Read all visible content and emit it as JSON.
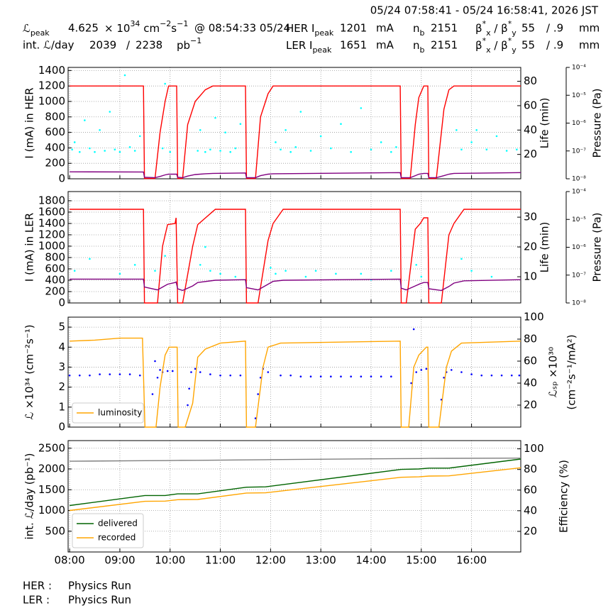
{
  "header": {
    "title": "05/24 07:58:41 - 05/24 16:58:41, 2026 JST",
    "rows": [
      [
        [
          {
            "text": "ℒ"
          },
          {
            "text": "peak",
            "pos": "sub"
          }
        ],
        "4.625",
        [
          {
            "text": "× 10"
          },
          {
            "text": "34",
            "pos": "sup"
          },
          {
            "text": " cm"
          },
          {
            "text": "−2",
            "pos": "sup"
          },
          {
            "text": "s"
          },
          {
            "text": "−1",
            "pos": "sup"
          }
        ],
        "@ 08:54:33 05/24",
        [
          {
            "text": "HER I"
          },
          {
            "text": "peak",
            "pos": "sub"
          }
        ],
        "1201",
        "mA",
        [
          {
            "text": "n"
          },
          {
            "text": "b",
            "pos": "sub"
          }
        ],
        "2151",
        [
          {
            "text": "β"
          },
          {
            "text": "*",
            "pos": "sup"
          },
          {
            "text": "x",
            "pos": "sub"
          },
          {
            "text": " / β"
          },
          {
            "text": "*",
            "pos": "sup"
          },
          {
            "text": "y",
            "pos": "sub"
          }
        ],
        "55",
        "/ .9",
        "mm"
      ],
      [
        "int. ℒ/day",
        "2039",
        "/",
        "2238",
        [
          {
            "text": "pb"
          },
          {
            "text": "−1",
            "pos": "sup"
          }
        ],
        [
          {
            "text": "LER I"
          },
          {
            "text": "peak",
            "pos": "sub"
          }
        ],
        "1651",
        "mA",
        [
          {
            "text": "n"
          },
          {
            "text": "b",
            "pos": "sub"
          }
        ],
        "2151",
        [
          {
            "text": "β"
          },
          {
            "text": "*",
            "pos": "sup"
          },
          {
            "text": "x",
            "pos": "sub"
          },
          {
            "text": " / β"
          },
          {
            "text": "*",
            "pos": "sup"
          },
          {
            "text": "y",
            "pos": "sub"
          }
        ],
        "55",
        "/ .9",
        "mm"
      ]
    ]
  },
  "footer": [
    [
      "HER :",
      "Physics Run"
    ],
    [
      "LER :",
      "Physics Run"
    ]
  ],
  "chart_data": [
    {
      "type": "line",
      "ylabel": "I (mA) in HER",
      "y2label": "Life (min)",
      "y3label": "Pressure (Pa)",
      "grid": true,
      "xlim": [
        7.97,
        16.98
      ],
      "xticks": [
        8,
        9,
        10,
        11,
        12,
        13,
        14,
        15,
        16
      ],
      "ylim": [
        0,
        1440
      ],
      "yticks": [
        0,
        200,
        400,
        600,
        800,
        1000,
        1200,
        1400
      ],
      "y2lim": [
        0,
        91.4
      ],
      "y2ticks": [
        20,
        40,
        60,
        80
      ],
      "y3lim": [
        1e-08,
        0.0001
      ],
      "y3scale": "log",
      "y3ticks": [
        {
          "value": 1e-08,
          "label": "10⁻⁸"
        },
        {
          "value": 1e-07,
          "label": "10⁻⁷"
        },
        {
          "value": 1e-06,
          "label": "10⁻⁶"
        },
        {
          "value": 1e-05,
          "label": "10⁻⁵"
        },
        {
          "value": 0.0001,
          "label": "10⁻⁴"
        }
      ],
      "x": [
        8.0,
        9.47,
        9.49,
        9.7,
        9.8,
        9.9,
        9.97,
        10.13,
        10.15,
        10.25,
        10.35,
        10.5,
        10.7,
        10.85,
        11.5,
        11.52,
        11.7,
        11.8,
        11.95,
        12.05,
        14.58,
        14.6,
        14.78,
        14.88,
        14.95,
        15.05,
        15.13,
        15.15,
        15.3,
        15.45,
        15.55,
        15.65,
        16.98
      ],
      "series": [
        {
          "type": "scatter",
          "color": "#00ffff",
          "axis": "y2",
          "x": [
            8.05,
            8.1,
            8.2,
            8.3,
            8.4,
            8.5,
            8.6,
            8.7,
            8.8,
            8.9,
            9.0,
            9.1,
            9.2,
            9.3,
            9.4,
            9.85,
            9.9,
            10.0,
            10.55,
            10.6,
            10.7,
            10.8,
            10.9,
            11.0,
            11.1,
            11.2,
            11.3,
            11.4,
            12.1,
            12.2,
            12.3,
            12.4,
            12.5,
            12.6,
            12.8,
            13.0,
            13.2,
            13.4,
            13.6,
            13.8,
            14.0,
            14.2,
            14.4,
            14.5,
            15.7,
            15.8,
            16.0,
            16.1,
            16.3,
            16.5,
            16.7,
            16.9
          ],
          "values": [
            24,
            30,
            22,
            48,
            25,
            22,
            40,
            23,
            55,
            24,
            22,
            85,
            26,
            23,
            35,
            25,
            78,
            22,
            23,
            40,
            22,
            24,
            50,
            23,
            38,
            22,
            25,
            45,
            30,
            24,
            40,
            22,
            26,
            55,
            23,
            35,
            25,
            45,
            22,
            58,
            24,
            30,
            22,
            26,
            40,
            24,
            30,
            40,
            24,
            35,
            23,
            24
          ]
        },
        {
          "color": "#ff0000",
          "values": [
            1200,
            1200,
            5,
            5,
            600,
            1000,
            1200,
            1200,
            5,
            5,
            700,
            1000,
            1150,
            1200,
            1200,
            5,
            5,
            800,
            1100,
            1200,
            1200,
            5,
            5,
            700,
            1050,
            1200,
            1200,
            5,
            5,
            900,
            1150,
            1200,
            1200
          ]
        },
        {
          "color": "#800080",
          "values": [
            90,
            88,
            20,
            15,
            30,
            50,
            60,
            60,
            20,
            15,
            35,
            55,
            65,
            70,
            75,
            15,
            15,
            40,
            60,
            65,
            80,
            15,
            15,
            40,
            60,
            70,
            70,
            15,
            15,
            40,
            60,
            70,
            80
          ]
        }
      ]
    },
    {
      "type": "line",
      "ylabel": "I (mA) in LER",
      "y2label": "Life (min)",
      "y3label": "Pressure (Pa)",
      "grid": true,
      "xlim": [
        7.97,
        16.98
      ],
      "xticks": [
        8,
        9,
        10,
        11,
        12,
        13,
        14,
        15,
        16
      ],
      "ylim": [
        0,
        1962
      ],
      "yticks": [
        0,
        200,
        400,
        600,
        800,
        1000,
        1200,
        1400,
        1600,
        1800
      ],
      "y2lim": [
        1.2,
        38.6
      ],
      "y2ticks": [
        10,
        20,
        30
      ],
      "y3lim": [
        1e-08,
        0.0001
      ],
      "y3scale": "log",
      "y3ticks": [
        {
          "value": 1e-08,
          "label": "10⁻⁸"
        },
        {
          "value": 1e-07,
          "label": "10⁻⁷"
        },
        {
          "value": 1e-06,
          "label": "10⁻⁶"
        },
        {
          "value": 1e-05,
          "label": "10⁻⁵"
        },
        {
          "value": 0.0001,
          "label": "10⁻⁴"
        }
      ],
      "x": [
        8.0,
        9.47,
        9.49,
        9.75,
        9.85,
        9.95,
        10.1,
        10.12,
        10.15,
        10.25,
        10.45,
        10.55,
        10.9,
        11.5,
        11.52,
        11.75,
        11.95,
        12.05,
        12.25,
        14.58,
        14.6,
        14.7,
        14.88,
        14.98,
        15.05,
        15.13,
        15.15,
        15.4,
        15.55,
        15.65,
        15.85,
        16.98
      ],
      "series": [
        {
          "type": "scatter",
          "color": "#00ffff",
          "axis": "y2",
          "x": [
            8.1,
            8.4,
            9.0,
            9.3,
            9.7,
            9.9,
            10.6,
            10.7,
            10.8,
            11.0,
            11.3,
            12.0,
            12.1,
            12.3,
            12.7,
            12.9,
            13.3,
            13.8,
            14.0,
            14.4,
            14.9,
            15.0,
            15.8,
            16.0,
            16.4
          ],
          "values": [
            12,
            16,
            11,
            14,
            12,
            17,
            14,
            20,
            12,
            11,
            10,
            13,
            11,
            12,
            10,
            12,
            11,
            11,
            9,
            12,
            14,
            10,
            16,
            12,
            10
          ]
        },
        {
          "color": "#ff0000",
          "values": [
            1650,
            1650,
            0,
            0,
            1000,
            1380,
            1400,
            1500,
            0,
            0,
            1000,
            1380,
            1650,
            1650,
            0,
            0,
            1100,
            1400,
            1650,
            1650,
            0,
            0,
            1300,
            1400,
            1500,
            1500,
            0,
            0,
            1200,
            1400,
            1650,
            1650
          ]
        },
        {
          "color": "#800080",
          "values": [
            420,
            420,
            280,
            230,
            280,
            330,
            360,
            370,
            250,
            220,
            300,
            360,
            400,
            410,
            270,
            230,
            330,
            380,
            400,
            420,
            260,
            230,
            300,
            340,
            360,
            360,
            250,
            220,
            290,
            350,
            390,
            410
          ]
        }
      ]
    },
    {
      "type": "line",
      "ylabel": "ℒ ×10³⁴ (cm⁻²s⁻¹)",
      "y2label": [
        "ℒₛₚ ×10³⁰",
        "(cm⁻²s⁻¹/mA²)"
      ],
      "grid": true,
      "legend": "lower left",
      "xlim": [
        7.97,
        16.98
      ],
      "xticks": [
        8,
        9,
        10,
        11,
        12,
        13,
        14,
        15,
        16
      ],
      "ylim": [
        0,
        5.5
      ],
      "yticks": [
        0,
        1,
        2,
        3,
        4,
        5
      ],
      "y2lim": [
        0,
        100
      ],
      "y2ticks": [
        20,
        40,
        60,
        80,
        100
      ],
      "x": [
        8.0,
        8.5,
        9.0,
        9.45,
        9.5,
        9.72,
        9.8,
        9.9,
        9.98,
        10.14,
        10.16,
        10.3,
        10.45,
        10.55,
        10.7,
        11.0,
        11.5,
        11.52,
        11.7,
        11.85,
        11.95,
        12.2,
        14.58,
        14.6,
        14.75,
        14.85,
        14.95,
        15.1,
        15.13,
        15.15,
        15.35,
        15.5,
        15.6,
        15.8,
        16.98
      ],
      "series": [
        {
          "type": "scatter",
          "color": "#0000ff",
          "axis": "y2",
          "x": [
            8.0,
            8.2,
            8.4,
            8.6,
            8.8,
            9.0,
            9.2,
            9.4,
            9.65,
            9.7,
            9.75,
            9.8,
            9.85,
            9.95,
            10.05,
            10.35,
            10.38,
            10.42,
            10.5,
            10.6,
            10.8,
            11.0,
            11.2,
            11.4,
            11.7,
            11.75,
            11.8,
            11.85,
            11.95,
            12.2,
            12.4,
            12.6,
            12.8,
            13.0,
            13.2,
            13.4,
            13.6,
            13.8,
            14.0,
            14.2,
            14.4,
            14.8,
            14.85,
            14.9,
            15.0,
            15.1,
            15.4,
            15.45,
            15.5,
            15.6,
            15.8,
            16.0,
            16.2,
            16.4,
            16.6,
            16.8,
            16.95
          ],
          "values": [
            47,
            47,
            47,
            48,
            48,
            48,
            48,
            47,
            30,
            60,
            45,
            52,
            50,
            51,
            51,
            20,
            35,
            50,
            53,
            50,
            48,
            47,
            47,
            47,
            8,
            30,
            45,
            53,
            50,
            47,
            47,
            46,
            46,
            46,
            46,
            46,
            46,
            46,
            46,
            46,
            46,
            40,
            89,
            50,
            52,
            53,
            25,
            45,
            50,
            52,
            50,
            48,
            47,
            47,
            47,
            47,
            47
          ]
        },
        {
          "name": "luminosity",
          "color": "#ffa500",
          "values": [
            4.3,
            4.35,
            4.45,
            4.45,
            0,
            0,
            2.0,
            3.6,
            4.0,
            4.0,
            0,
            0,
            1.2,
            3.5,
            3.9,
            4.2,
            4.3,
            0,
            0,
            3.0,
            4.0,
            4.2,
            4.3,
            0,
            0,
            3.0,
            3.6,
            4.0,
            4.0,
            0,
            0,
            3.0,
            3.8,
            4.2,
            4.3
          ]
        }
      ]
    },
    {
      "type": "line",
      "ylabel": "int. ℒ/day (pb⁻¹)",
      "y2label": "Efficiency (%)",
      "grid": true,
      "legend": "lower left",
      "xlim": [
        7.97,
        16.98
      ],
      "xticks": [
        {
          "value": 8,
          "label": "08:00"
        },
        {
          "value": 9,
          "label": "09:00"
        },
        {
          "value": 10,
          "label": "10:00"
        },
        {
          "value": 11,
          "label": "11:00"
        },
        {
          "value": 12,
          "label": "12:00"
        },
        {
          "value": 13,
          "label": "13:00"
        },
        {
          "value": 14,
          "label": "14:00"
        },
        {
          "value": 15,
          "label": "15:00"
        },
        {
          "value": 16,
          "label": "16:00"
        }
      ],
      "ylim": [
        0,
        2684
      ],
      "yticks": [
        500,
        1000,
        1500,
        2000,
        2500
      ],
      "y2lim": [
        0,
        108
      ],
      "y2ticks": [
        20,
        40,
        60,
        80,
        100
      ],
      "x": [
        8.0,
        9.5,
        9.9,
        10.15,
        10.55,
        11.52,
        11.9,
        14.6,
        14.95,
        15.15,
        15.55,
        16.98
      ],
      "series": [
        {
          "color": "#808080",
          "axis": "y2",
          "values": [
            88,
            88.5,
            88.6,
            88.8,
            88.9,
            89.3,
            89.5,
            90.5,
            90.6,
            90.7,
            90.8,
            91
          ]
        },
        {
          "name": "delivered",
          "color": "#006400",
          "values": [
            1120,
            1360,
            1360,
            1400,
            1400,
            1560,
            1570,
            1990,
            2000,
            2020,
            2020,
            2240
          ]
        },
        {
          "name": "recorded",
          "color": "#ffa500",
          "values": [
            1000,
            1220,
            1225,
            1260,
            1265,
            1420,
            1425,
            1800,
            1810,
            1830,
            1835,
            2030
          ]
        }
      ]
    }
  ]
}
